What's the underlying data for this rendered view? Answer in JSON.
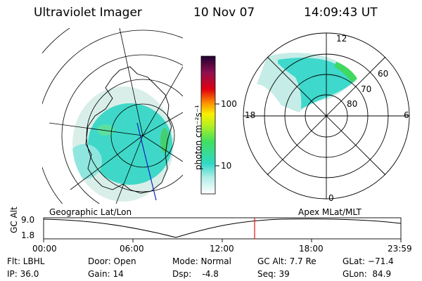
{
  "header": {
    "instrument": "Ultraviolet Imager",
    "date": "10 Nov 07",
    "time": "14:09:43 UT"
  },
  "colorbar": {
    "unit_label": "photon cm⁻²s⁻¹",
    "ticks": [
      "100",
      "10"
    ]
  },
  "polar_plot": {
    "mlt_labels": [
      "12",
      "18",
      "6",
      "0"
    ],
    "lat_labels": [
      "60",
      "70",
      "80"
    ]
  },
  "map_labels": {
    "left": "Geographic Lat/Lon",
    "right": "Apex MLat/MLT"
  },
  "altitude_plot": {
    "axis_label": "GC Alt",
    "y_ticks": [
      "9.0",
      "1.8"
    ],
    "x_ticks": [
      "00:00",
      "06:00",
      "12:00",
      "18:00",
      "23:59"
    ]
  },
  "footer": {
    "flt": "Flt: LBHL",
    "ip": "IP: 36.0",
    "door": "Door: Open",
    "gain": "Gain: 14",
    "mode": "Mode: Normal",
    "dsp": "Dsp:    -4.8",
    "gcalt": "GC Alt: 7.7 Re",
    "seq": "Seq: 39",
    "glat": "GLat: −71.4",
    "glon": "GLon:  84.9"
  }
}
